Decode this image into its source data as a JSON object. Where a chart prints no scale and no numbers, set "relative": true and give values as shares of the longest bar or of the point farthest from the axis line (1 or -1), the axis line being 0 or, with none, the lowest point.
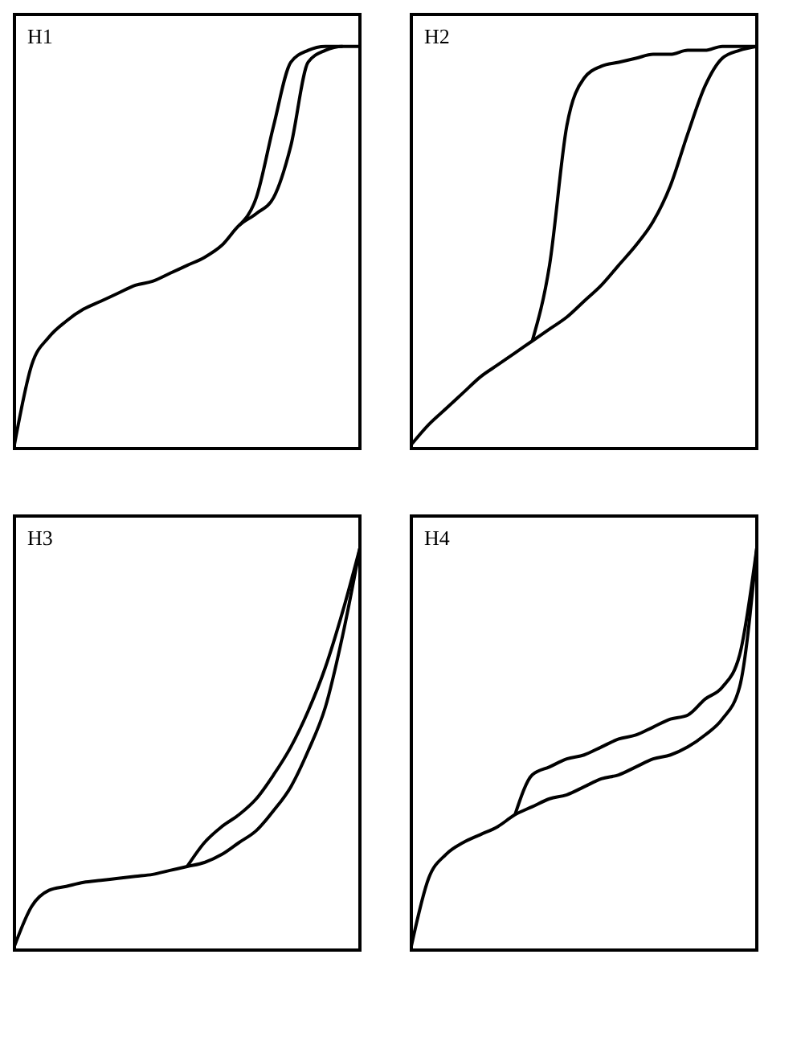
{
  "chart_data": [
    {
      "type": "line",
      "title": "H1",
      "relative": true,
      "grid": false,
      "legend": false,
      "categories": [
        null,
        null,
        null,
        null,
        null,
        null,
        null,
        null,
        null,
        null,
        null,
        null,
        null,
        null,
        null,
        null,
        null,
        null,
        null,
        null,
        null
      ],
      "series": [
        {
          "color": "#000000",
          "values": [
            null,
            null,
            null,
            null,
            null,
            null,
            null,
            null,
            null,
            null,
            null,
            null,
            null,
            0.55,
            0.62,
            0.8,
            0.96,
            0.99,
            1,
            1,
            null
          ]
        },
        {
          "color": "#000000",
          "values": [
            0,
            0.2,
            0.27,
            0.31,
            0.34,
            0.36,
            0.38,
            0.4,
            0.41,
            0.43,
            0.45,
            0.47,
            0.5,
            0.55,
            0.58,
            0.62,
            0.75,
            0.96,
            0.99,
            1,
            1
          ]
        }
      ]
    },
    {
      "type": "line",
      "title": "H2",
      "relative": true,
      "grid": false,
      "legend": false,
      "categories": [
        null,
        null,
        null,
        null,
        null,
        null,
        null,
        null,
        null,
        null,
        null,
        null,
        null,
        null,
        null,
        null,
        null,
        null,
        null,
        null,
        null
      ],
      "series": [
        {
          "color": "#000000",
          "values": [
            null,
            null,
            null,
            null,
            null,
            null,
            null,
            0.26,
            0.45,
            0.8,
            0.92,
            0.95,
            0.96,
            0.97,
            0.98,
            0.98,
            0.99,
            0.99,
            1,
            1,
            1
          ]
        },
        {
          "color": "#000000",
          "values": [
            0,
            0.05,
            0.09,
            0.13,
            0.17,
            0.2,
            0.23,
            0.26,
            0.29,
            0.32,
            0.36,
            0.4,
            0.45,
            0.5,
            0.56,
            0.65,
            0.78,
            0.9,
            0.97,
            0.99,
            1
          ]
        }
      ]
    },
    {
      "type": "line",
      "title": "H3",
      "relative": true,
      "grid": false,
      "legend": false,
      "categories": [
        null,
        null,
        null,
        null,
        null,
        null,
        null,
        null,
        null,
        null,
        null,
        null,
        null,
        null,
        null,
        null,
        null,
        null,
        null,
        null,
        null
      ],
      "series": [
        {
          "color": "#000000",
          "values": [
            null,
            null,
            null,
            null,
            null,
            null,
            null,
            null,
            null,
            null,
            0.2,
            0.26,
            0.3,
            0.33,
            0.37,
            0.43,
            0.5,
            0.59,
            0.7,
            0.84,
            1
          ]
        },
        {
          "color": "#000000",
          "values": [
            0,
            0.1,
            0.14,
            0.15,
            0.16,
            0.165,
            0.17,
            0.175,
            0.18,
            0.19,
            0.2,
            0.21,
            0.23,
            0.26,
            0.29,
            0.34,
            0.4,
            0.49,
            0.6,
            0.78,
            1
          ]
        }
      ]
    },
    {
      "type": "line",
      "title": "H4",
      "relative": true,
      "grid": false,
      "legend": false,
      "categories": [
        null,
        null,
        null,
        null,
        null,
        null,
        null,
        null,
        null,
        null,
        null,
        null,
        null,
        null,
        null,
        null,
        null,
        null,
        null,
        null,
        null
      ],
      "series": [
        {
          "color": "#000000",
          "values": [
            null,
            null,
            null,
            null,
            null,
            null,
            0.33,
            0.43,
            0.45,
            0.47,
            0.48,
            0.5,
            0.52,
            0.53,
            0.55,
            0.57,
            0.58,
            0.62,
            0.65,
            0.73,
            1
          ]
        },
        {
          "color": "#000000",
          "values": [
            0,
            0.17,
            0.23,
            0.26,
            0.28,
            0.3,
            0.33,
            0.35,
            0.37,
            0.38,
            0.4,
            0.42,
            0.43,
            0.45,
            0.47,
            0.48,
            0.5,
            0.53,
            0.57,
            0.65,
            1
          ]
        }
      ]
    }
  ]
}
